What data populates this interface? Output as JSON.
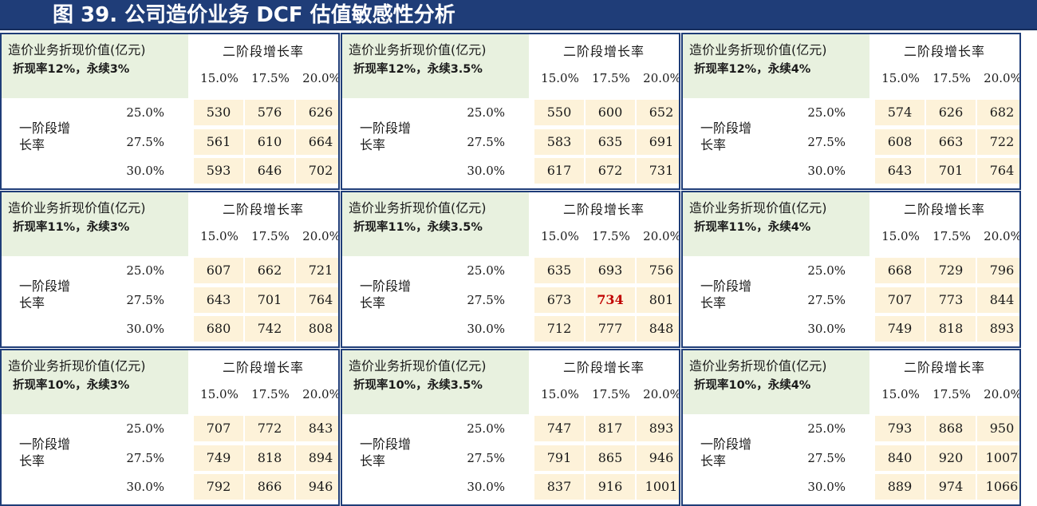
{
  "title": "图 39. 公司造价业务 DCF 估值敏感性分析",
  "panel_title": "造价业务折现价值(亿元)",
  "stage2_label": "二阶段增长率",
  "stage1_label": "一阶段增长率",
  "stage2_rates": [
    "15.0%",
    "17.5%",
    "20.0%"
  ],
  "stage1_rates": [
    "25.0%",
    "27.5%",
    "30.0%"
  ],
  "panels": [
    {
      "scenario": "折现率12%，永续3%",
      "values": [
        [
          "530",
          "576",
          "626"
        ],
        [
          "561",
          "610",
          "664"
        ],
        [
          "593",
          "646",
          "702"
        ]
      ]
    },
    {
      "scenario": "折现率12%，永续3.5%",
      "values": [
        [
          "550",
          "600",
          "652"
        ],
        [
          "583",
          "635",
          "691"
        ],
        [
          "617",
          "672",
          "731"
        ]
      ]
    },
    {
      "scenario": "折现率12%，永续4%",
      "values": [
        [
          "574",
          "626",
          "682"
        ],
        [
          "608",
          "663",
          "722"
        ],
        [
          "643",
          "701",
          "764"
        ]
      ]
    },
    {
      "scenario": "折现率11%，永续3%",
      "values": [
        [
          "607",
          "662",
          "721"
        ],
        [
          "643",
          "701",
          "764"
        ],
        [
          "680",
          "742",
          "808"
        ]
      ]
    },
    {
      "scenario": "折现率11%，永续3.5%",
      "values": [
        [
          "635",
          "693",
          "756"
        ],
        [
          "673",
          "734",
          "801"
        ],
        [
          "712",
          "777",
          "848"
        ]
      ]
    },
    {
      "scenario": "折现率11%，永续4%",
      "values": [
        [
          "668",
          "729",
          "796"
        ],
        [
          "707",
          "773",
          "844"
        ],
        [
          "749",
          "818",
          "893"
        ]
      ]
    },
    {
      "scenario": "折现率10%，永续3%",
      "values": [
        [
          "707",
          "772",
          "843"
        ],
        [
          "749",
          "818",
          "894"
        ],
        [
          "792",
          "866",
          "946"
        ]
      ]
    },
    {
      "scenario": "折现率10%，永续3.5%",
      "values": [
        [
          "747",
          "817",
          "893"
        ],
        [
          "791",
          "865",
          "946"
        ],
        [
          "837",
          "916",
          "1001"
        ]
      ]
    },
    {
      "scenario": "折现率10%，永续4%",
      "values": [
        [
          "793",
          "868",
          "950"
        ],
        [
          "840",
          "920",
          "1007"
        ],
        [
          "889",
          "974",
          "1066"
        ]
      ]
    }
  ],
  "highlight": {
    "panel": 4,
    "row": 1,
    "col": 1
  },
  "colors": {
    "title_bg": "#1f3d78",
    "label_bg": "#e8f1df",
    "cell_bg": "#fdf2d9",
    "highlight_text": "#c00000"
  }
}
